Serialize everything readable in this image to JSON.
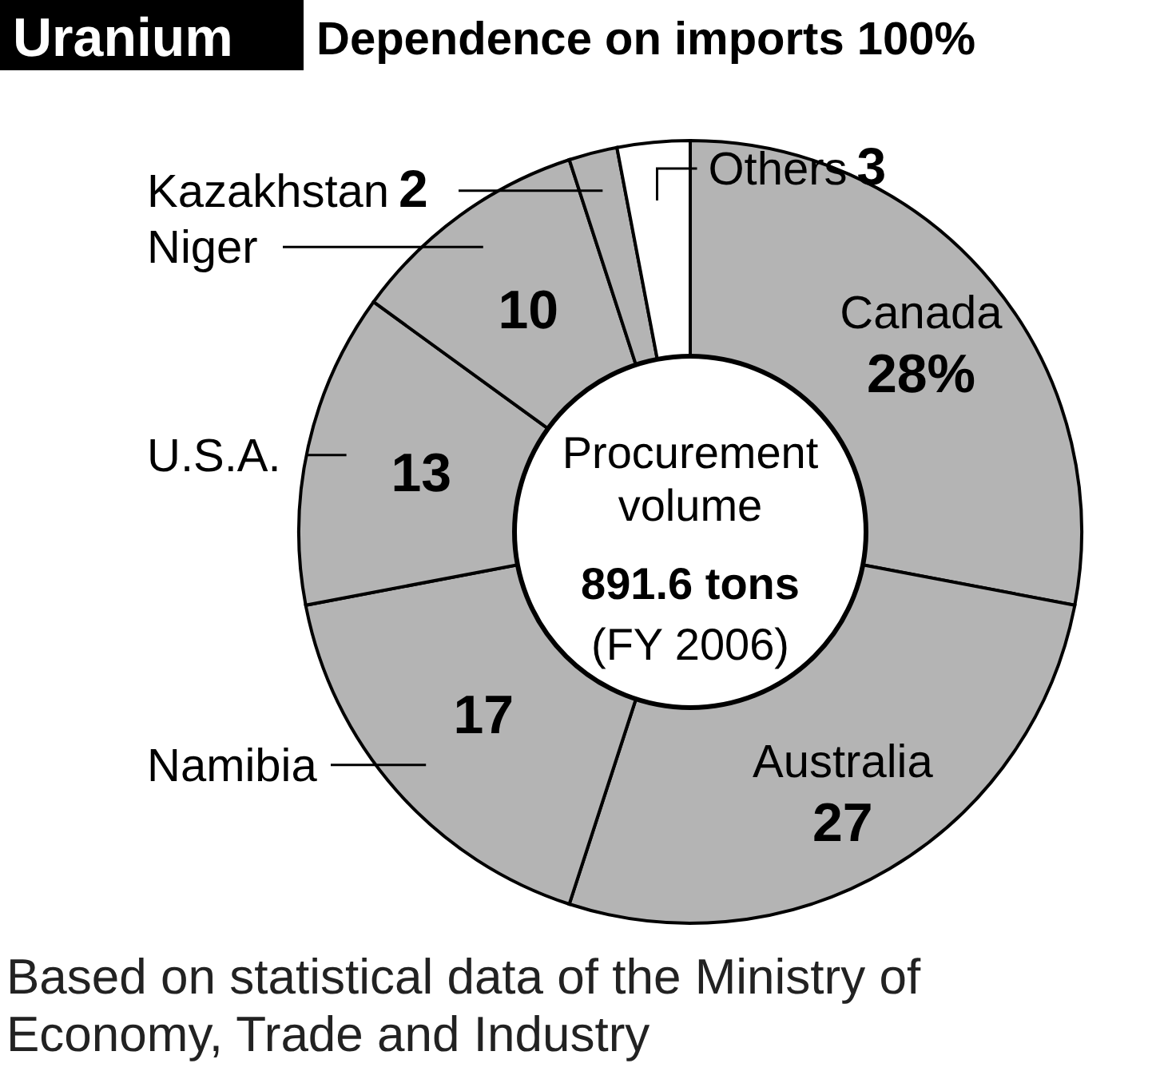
{
  "chart_data": {
    "type": "donut",
    "title": "Uranium",
    "subtitle": "Dependence on imports 100%",
    "categories": [
      "Canada",
      "Australia",
      "Namibia",
      "U.S.A.",
      "Niger",
      "Kazakhstan",
      "Others"
    ],
    "values": [
      28,
      27,
      17,
      13,
      10,
      2,
      3
    ],
    "colors": [
      "#b4b4b4",
      "#b4b4b4",
      "#b4b4b4",
      "#b4b4b4",
      "#b4b4b4",
      "#b4b4b4",
      "#ffffff"
    ],
    "value_labels": [
      "28%",
      "27",
      "17",
      "13",
      "10",
      "2",
      "3"
    ],
    "annotations": [
      "Procurement volume",
      "891.6 tons",
      "(FY 2006)",
      "Based on statistical data of the Ministry of Economy, Trade and Industry"
    ]
  }
}
